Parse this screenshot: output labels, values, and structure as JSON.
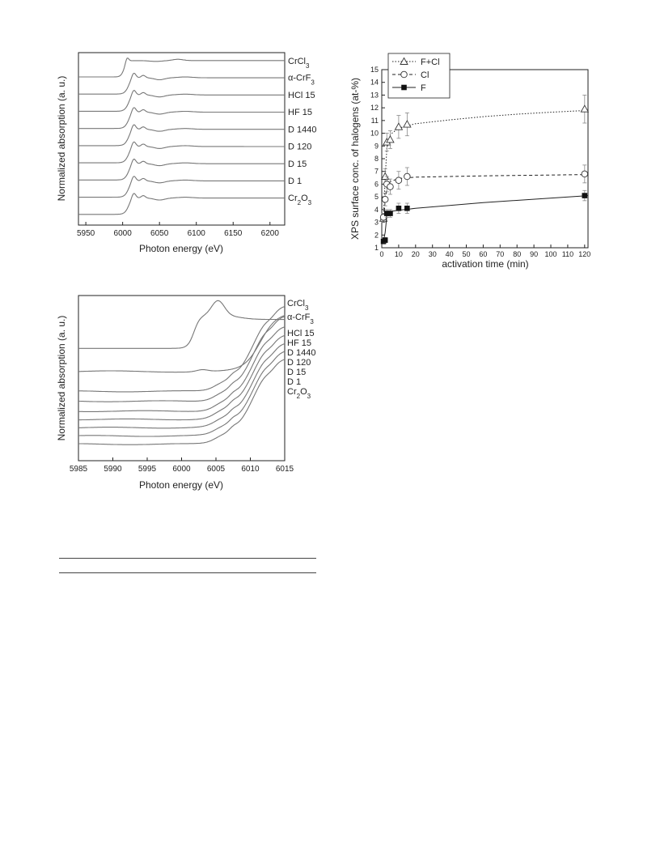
{
  "charts": [
    {
      "type": "line",
      "xlabel": "Photon energy (eV)",
      "ylabel": "Normalized absorption (a. u.)",
      "xlim": [
        5940,
        6220
      ],
      "xticks": [
        "5950",
        "6000",
        "6050",
        "6100",
        "6150",
        "6200"
      ],
      "xtick_values": [
        5950,
        6000,
        6050,
        6100,
        6150,
        6200
      ],
      "series": [
        {
          "name": "CrCl3",
          "label": "CrCl",
          "sub": "3",
          "baseline": 0,
          "edge": 6002,
          "shape": "cl"
        },
        {
          "name": "α-CrF3",
          "label": "α-CrF",
          "sub": "3",
          "baseline": 1,
          "edge": 6008,
          "shape": "cr"
        },
        {
          "name": "HCl 15",
          "label": "HCl 15",
          "sub": "",
          "baseline": 2,
          "edge": 6008,
          "shape": "cr"
        },
        {
          "name": "HF 15",
          "label": "HF 15",
          "sub": "",
          "baseline": 3,
          "edge": 6008,
          "shape": "cr"
        },
        {
          "name": "D 1440",
          "label": "D 1440",
          "sub": "",
          "baseline": 4,
          "edge": 6008,
          "shape": "cr"
        },
        {
          "name": "D 120",
          "label": "D 120",
          "sub": "",
          "baseline": 5,
          "edge": 6008,
          "shape": "cr"
        },
        {
          "name": "D 15",
          "label": "D 15",
          "sub": "",
          "baseline": 6,
          "edge": 6008,
          "shape": "cr"
        },
        {
          "name": "D 1",
          "label": "D 1",
          "sub": "",
          "baseline": 7,
          "edge": 6008,
          "shape": "cr"
        },
        {
          "name": "Cr2O3",
          "label": "Cr",
          "sub": "2",
          "label2": "O",
          "sub2": "3",
          "baseline": 8,
          "edge": 6008,
          "shape": "cr"
        }
      ]
    },
    {
      "type": "scatter",
      "xlabel": "activation time (min)",
      "ylabel": "XPS surface conc. of halogens (at-%)",
      "xlim": [
        0,
        122
      ],
      "ylim": [
        1,
        15
      ],
      "xticks": [
        0,
        10,
        20,
        30,
        40,
        50,
        60,
        70,
        80,
        90,
        100,
        110,
        120
      ],
      "yticks": [
        1,
        2,
        3,
        4,
        5,
        6,
        7,
        8,
        9,
        10,
        11,
        12,
        13,
        14,
        15
      ],
      "legend_position": "top-left",
      "series": [
        {
          "name": "F+Cl",
          "marker": "open-triangle",
          "line": "dotted",
          "x": [
            1,
            2,
            3,
            5,
            10,
            15,
            120
          ],
          "y": [
            3.3,
            6.6,
            9.3,
            9.5,
            10.5,
            10.7,
            11.9
          ],
          "err": [
            0.3,
            0.6,
            0.7,
            0.7,
            0.9,
            0.9,
            1.1
          ],
          "fit": [
            [
              1,
              3.4
            ],
            [
              2,
              6.5
            ],
            [
              3,
              8.8
            ],
            [
              5,
              9.9
            ],
            [
              10,
              10.4
            ],
            [
              20,
              10.75
            ],
            [
              40,
              11.05
            ],
            [
              60,
              11.3
            ],
            [
              80,
              11.5
            ],
            [
              100,
              11.65
            ],
            [
              122,
              11.8
            ]
          ]
        },
        {
          "name": "Cl",
          "marker": "open-circle",
          "line": "dashed",
          "x": [
            1,
            2,
            3,
            5,
            10,
            15,
            120
          ],
          "y": [
            3.4,
            4.8,
            6.0,
            5.8,
            6.3,
            6.6,
            6.8
          ],
          "err": [
            0.3,
            0.5,
            0.6,
            0.6,
            0.7,
            0.7,
            0.7
          ],
          "fit": [
            [
              1,
              3.0
            ],
            [
              2,
              4.7
            ],
            [
              3,
              5.7
            ],
            [
              5,
              6.2
            ],
            [
              10,
              6.45
            ],
            [
              20,
              6.55
            ],
            [
              60,
              6.65
            ],
            [
              122,
              6.75
            ]
          ]
        },
        {
          "name": "F",
          "marker": "filled-square",
          "line": "solid",
          "x": [
            1,
            2,
            3,
            5,
            10,
            15,
            120
          ],
          "y": [
            1.5,
            1.6,
            3.7,
            3.7,
            4.1,
            4.1,
            5.1
          ],
          "err": [
            0.2,
            0.2,
            0.3,
            0.3,
            0.4,
            0.4,
            0.4
          ],
          "fit": [
            [
              1,
              1.5
            ],
            [
              2,
              2.2
            ],
            [
              3,
              3.5
            ],
            [
              5,
              3.85
            ],
            [
              10,
              3.95
            ],
            [
              20,
              4.1
            ],
            [
              60,
              4.55
            ],
            [
              122,
              5.1
            ]
          ]
        }
      ]
    },
    {
      "type": "line",
      "xlabel": "Photon energy (eV)",
      "ylabel": "Normalized absorption (a. u.)",
      "xlim": [
        5985,
        6015
      ],
      "xticks": [
        "5985",
        "5990",
        "5995",
        "6000",
        "6005",
        "6010",
        "6015"
      ],
      "xtick_values": [
        5985,
        5990,
        5995,
        6000,
        6005,
        6010,
        6015
      ],
      "series": [
        {
          "name": "CrCl3",
          "label": "CrCl",
          "sub": "3",
          "kind": "cl",
          "base": 0.68
        },
        {
          "name": "α-CrF3",
          "label": "α-CrF",
          "sub": "3",
          "kind": "crf",
          "base": 0.54
        },
        {
          "name": "HCl 15",
          "label": "HCl 15",
          "sub": "",
          "kind": "c",
          "base": 0.42
        },
        {
          "name": "HF 15",
          "label": "HF 15",
          "sub": "",
          "kind": "c",
          "base": 0.36
        },
        {
          "name": "D 1440",
          "label": "D 1440",
          "sub": "",
          "kind": "c",
          "base": 0.3
        },
        {
          "name": "D 120",
          "label": "D 120",
          "sub": "",
          "kind": "c",
          "base": 0.25
        },
        {
          "name": "D 15",
          "label": "D 15",
          "sub": "",
          "kind": "c",
          "base": 0.2
        },
        {
          "name": "D 1",
          "label": "D 1",
          "sub": "",
          "kind": "c",
          "base": 0.15
        },
        {
          "name": "Cr2O3",
          "label": "Cr",
          "sub": "2",
          "label2": "O",
          "sub2": "3",
          "kind": "c",
          "base": 0.1
        }
      ]
    }
  ],
  "colors": {
    "line": "#777777",
    "axis": "#222222",
    "marker": "#111111"
  }
}
